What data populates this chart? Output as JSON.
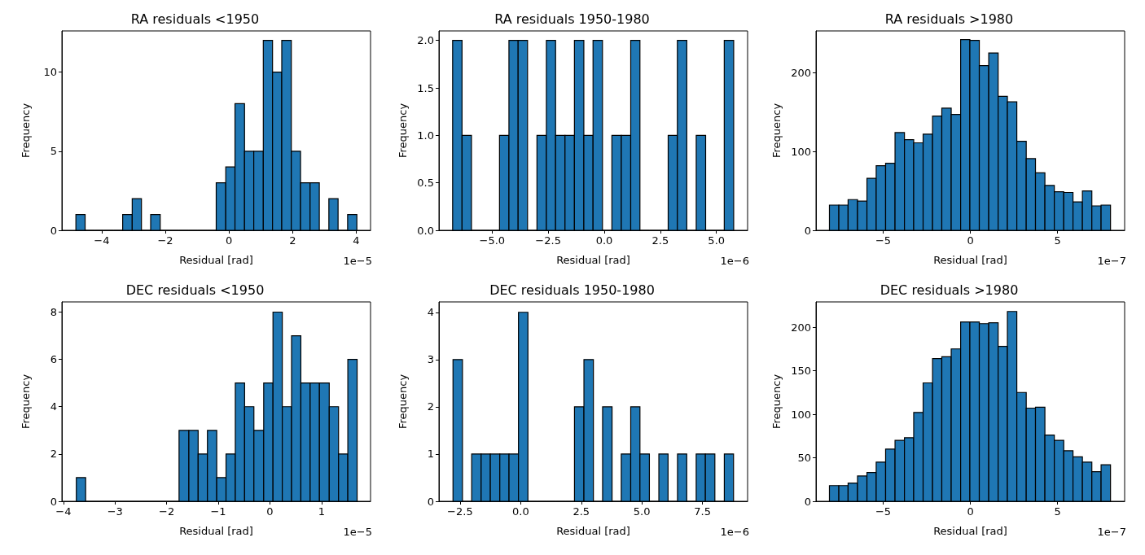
{
  "chart_data": [
    {
      "type": "histogram",
      "title": "RA residuals <1950",
      "xlabel": "Residual [rad]",
      "ylabel": "Frequency",
      "color": "#1f77b4",
      "annotations": [
        "1e−5"
      ],
      "bins": [
        -4.81,
        -4.52,
        -4.22,
        -3.93,
        -3.63,
        -3.34,
        -3.04,
        -2.75,
        -2.46,
        -2.16,
        -1.87,
        -1.57,
        -1.28,
        -0.98,
        -0.69,
        -0.4,
        -0.1,
        0.19,
        0.49,
        0.78,
        1.08,
        1.37,
        1.66,
        1.96,
        2.25,
        2.55,
        2.84,
        3.14,
        3.43,
        3.73,
        4.02
      ],
      "values": [
        1,
        0,
        0,
        0,
        0,
        1,
        2,
        0,
        1,
        0,
        0,
        0,
        0,
        0,
        0,
        3,
        4,
        8,
        5,
        5,
        12,
        10,
        12,
        5,
        3,
        3,
        0,
        2,
        0,
        1
      ],
      "xlim": [
        -5.25,
        4.45
      ],
      "ylim": [
        0,
        12.6
      ],
      "xticks": [
        {
          "value": -4,
          "label": "−4"
        },
        {
          "value": -2,
          "label": "−2"
        },
        0,
        2,
        4
      ],
      "yticks": [
        0,
        5,
        10
      ]
    },
    {
      "type": "histogram",
      "title": "RA residuals 1950-1980",
      "xlabel": "Residual [rad]",
      "ylabel": "Frequency",
      "color": "#1f77b4",
      "annotations": [
        "1e−6"
      ],
      "bins": [
        -6.76,
        -6.34,
        -5.92,
        -5.51,
        -5.09,
        -4.67,
        -4.25,
        -3.84,
        -3.42,
        -3.0,
        -2.58,
        -2.17,
        -1.75,
        -1.33,
        -0.91,
        -0.5,
        -0.08,
        0.34,
        0.76,
        1.18,
        1.59,
        2.01,
        2.43,
        2.85,
        3.26,
        3.68,
        4.1,
        4.52,
        4.94,
        5.35,
        5.77
      ],
      "values": [
        2,
        1,
        0,
        0,
        0,
        1,
        2,
        2,
        0,
        1,
        2,
        1,
        1,
        2,
        1,
        2,
        0,
        1,
        1,
        2,
        0,
        0,
        0,
        1,
        2,
        0,
        1,
        0,
        0,
        2
      ],
      "xlim": [
        -7.37,
        6.39
      ],
      "ylim": [
        0,
        2.1
      ],
      "xticks": [
        {
          "value": -5,
          "label": "−5.0"
        },
        {
          "value": -2.5,
          "label": "−2.5"
        },
        {
          "value": 0,
          "label": "0.0"
        },
        2.5,
        {
          "value": 5,
          "label": "5.0"
        }
      ],
      "yticks": [
        {
          "value": 0,
          "label": "0.0"
        },
        0.5,
        {
          "value": 1,
          "label": "1.0"
        },
        1.5,
        {
          "value": 2,
          "label": "2.0"
        }
      ]
    },
    {
      "type": "histogram",
      "title": "RA residuals >1980",
      "xlabel": "Residual [rad]",
      "ylabel": "Frequency",
      "color": "#1f77b4",
      "annotations": [
        "1e−7"
      ],
      "bins": [
        -8.08,
        -7.54,
        -7.01,
        -6.47,
        -5.93,
        -5.4,
        -4.86,
        -4.32,
        -3.78,
        -3.25,
        -2.71,
        -2.17,
        -1.64,
        -1.1,
        -0.56,
        -0.03,
        0.51,
        1.05,
        1.59,
        2.12,
        2.66,
        3.2,
        3.73,
        4.27,
        4.81,
        5.35,
        5.88,
        6.42,
        6.96,
        7.49,
        8.03
      ],
      "values": [
        32,
        32,
        39,
        37,
        66,
        82,
        85,
        124,
        115,
        111,
        122,
        145,
        155,
        147,
        242,
        241,
        209,
        225,
        170,
        163,
        113,
        91,
        73,
        57,
        49,
        48,
        36,
        50,
        31,
        32
      ],
      "xlim": [
        -8.85,
        8.84
      ],
      "ylim": [
        0,
        253
      ],
      "xticks": [
        {
          "value": -5,
          "label": "−5"
        },
        0,
        5
      ],
      "yticks": [
        0,
        100,
        200
      ]
    },
    {
      "type": "histogram",
      "title": "DEC residuals <1950",
      "xlabel": "Residual [rad]",
      "ylabel": "Frequency",
      "color": "#1f77b4",
      "annotations": [
        "1e−5"
      ],
      "bins": [
        -3.75,
        -3.57,
        -1.76,
        -1.57,
        -1.39,
        -1.21,
        -1.03,
        -0.85,
        -0.67,
        -0.49,
        -0.31,
        -0.12,
        0.06,
        0.24,
        0.42,
        0.6,
        0.78,
        0.96,
        1.15,
        1.33,
        1.51,
        1.69
      ],
      "values": [
        1,
        0,
        3,
        3,
        2,
        3,
        1,
        2,
        5,
        4,
        3,
        5,
        8,
        4,
        7,
        5,
        5,
        5,
        4,
        2,
        6
      ],
      "xlim": [
        -4.03,
        1.95
      ],
      "ylim": [
        0,
        8.43
      ],
      "xticks": [
        {
          "value": -4,
          "label": "−4"
        },
        {
          "value": -3,
          "label": "−3"
        },
        {
          "value": -2,
          "label": "−2"
        },
        {
          "value": -1,
          "label": "−1"
        },
        0,
        1
      ],
      "yticks": [
        0,
        2,
        4,
        6,
        8
      ]
    },
    {
      "type": "histogram",
      "title": "DEC residuals 1950-1980",
      "xlabel": "Residual [rad]",
      "ylabel": "Frequency",
      "color": "#1f77b4",
      "annotations": [
        "1e−6"
      ],
      "bins": [
        -2.79,
        -2.4,
        -2.02,
        -1.63,
        -1.25,
        -0.86,
        -0.48,
        -0.09,
        0.3,
        0.68,
        1.07,
        1.45,
        1.84,
        2.22,
        2.61,
        3.0,
        3.38,
        3.77,
        4.15,
        4.54,
        4.92,
        5.31,
        5.7,
        6.08,
        6.47,
        6.85,
        7.24,
        7.62,
        8.01,
        8.4,
        8.78
      ],
      "values": [
        3,
        0,
        1,
        1,
        1,
        1,
        1,
        4,
        0,
        0,
        0,
        0,
        0,
        2,
        3,
        0,
        2,
        0,
        1,
        2,
        1,
        0,
        1,
        0,
        1,
        0,
        1,
        1,
        0,
        1
      ],
      "xlim": [
        -3.37,
        9.36
      ],
      "ylim": [
        0,
        4.22
      ],
      "xticks": [
        {
          "value": -2.5,
          "label": "−2.5"
        },
        {
          "value": 0,
          "label": "0.0"
        },
        2.5,
        {
          "value": 5,
          "label": "5.0"
        },
        7.5
      ],
      "yticks": [
        0,
        1,
        2,
        3,
        4
      ]
    },
    {
      "type": "histogram",
      "title": "DEC residuals >1980",
      "xlabel": "Residual [rad]",
      "ylabel": "Frequency",
      "color": "#1f77b4",
      "annotations": [
        "1e−7"
      ],
      "bins": [
        -8.08,
        -7.54,
        -7.01,
        -6.47,
        -5.93,
        -5.4,
        -4.86,
        -4.32,
        -3.78,
        -3.25,
        -2.71,
        -2.17,
        -1.64,
        -1.1,
        -0.56,
        -0.03,
        0.51,
        1.05,
        1.59,
        2.12,
        2.66,
        3.2,
        3.73,
        4.27,
        4.81,
        5.35,
        5.88,
        6.42,
        6.96,
        7.49,
        8.03
      ],
      "values": [
        18,
        18,
        21,
        29,
        33,
        45,
        60,
        70,
        73,
        102,
        136,
        164,
        166,
        175,
        206,
        206,
        204,
        205,
        178,
        218,
        125,
        107,
        108,
        76,
        70,
        58,
        51,
        45,
        34,
        42
      ],
      "xlim": [
        -8.85,
        8.84
      ],
      "ylim": [
        0,
        229
      ],
      "xticks": [
        {
          "value": -5,
          "label": "−5"
        },
        0,
        5
      ],
      "yticks": [
        0,
        50,
        100,
        150,
        200
      ]
    }
  ]
}
